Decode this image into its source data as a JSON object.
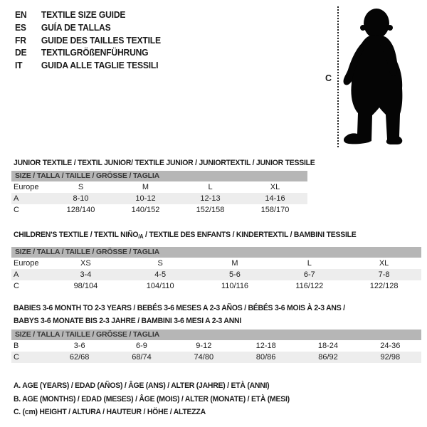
{
  "colors": {
    "header_bar": "#b6b6b6",
    "row_stripe": "#ededed",
    "text": "#1c1c1c",
    "bar_text": "#383838",
    "silhouette": "#050505"
  },
  "languages": [
    {
      "code": "EN",
      "title": "TEXTILE SIZE GUIDE"
    },
    {
      "code": "ES",
      "title": "GUÍA DE TALLAS"
    },
    {
      "code": "FR",
      "title": "GUIDE DES TAILLES TEXTILE"
    },
    {
      "code": "DE",
      "title": "TEXTILGRÖßENFÜHRUNG"
    },
    {
      "code": "IT",
      "title": "GUIDA ALLE TAGLIE TESSILI"
    }
  ],
  "figure": {
    "icon": "baby-silhouette",
    "height_label": "C"
  },
  "tables": [
    {
      "id": "junior",
      "heading": "JUNIOR TEXTILE / TEXTIL JUNIOR/ TEXTILE JUNIOR / JUNIORTEXTIL / JUNIOR TESSILE",
      "size_header": "SIZE / TALLA / TAILLE / GRÖSSE / TAGLIA",
      "rows": [
        {
          "label": "Europe",
          "values": [
            "S",
            "M",
            "L",
            "XL"
          ]
        },
        {
          "label": "A",
          "values": [
            "8-10",
            "10-12",
            "12-13",
            "14-16"
          ]
        },
        {
          "label": "C",
          "values": [
            "128/140",
            "140/152",
            "152/158",
            "158/170"
          ]
        }
      ]
    },
    {
      "id": "children",
      "heading_pre": "CHILDREN'S TEXTILE / TEXTIL NIÑO",
      "heading_sub": "/A",
      "heading_post": " / TEXTILE DES ENFANTS / KINDERTEXTIL / BAMBINI TESSILE",
      "size_header": "SIZE / TALLA / TAILLE / GRÖSSE / TAGLIA",
      "rows": [
        {
          "label": "Europe",
          "values": [
            "XS",
            "S",
            "M",
            "L",
            "XL"
          ]
        },
        {
          "label": "A",
          "values": [
            "3-4",
            "4-5",
            "5-6",
            "6-7",
            "7-8"
          ]
        },
        {
          "label": "C",
          "values": [
            "98/104",
            "104/110",
            "110/116",
            "116/122",
            "122/128"
          ]
        }
      ]
    },
    {
      "id": "babies",
      "heading_lines": [
        "BABIES 3-6 MONTH TO 2-3 YEARS / BEBÉS 3-6 MESES A 2-3 AÑOS / BÉBÉS 3-6 MOIS À 2-3 ANS /",
        "BABYS 3-6 MONATE BIS 2-3 JAHRE / BAMBINI 3-6 MESI A 2-3 ANNI"
      ],
      "size_header": "SIZE / TALLA / TAILLE / GRÖSSE / TAGLIA",
      "rows": [
        {
          "label": "B",
          "values": [
            "3-6",
            "6-9",
            "9-12",
            "12-18",
            "18-24",
            "24-36"
          ]
        },
        {
          "label": "C",
          "values": [
            "62/68",
            "68/74",
            "74/80",
            "80/86",
            "86/92",
            "92/98"
          ]
        }
      ]
    }
  ],
  "notes": [
    "A. AGE (YEARS) / EDAD (AÑOS) / ÂGE (ANS) / ALTER (JAHRE) / ETÀ (ANNI)",
    "B. AGE (MONTHS) / EDAD (MESES) / ÂGE (MOIS) / ALTER (MONATE) / ETÀ (MESI)",
    "C. (cm) HEIGHT / ALTURA / HAUTEUR / HÖHE / ALTEZZA"
  ]
}
